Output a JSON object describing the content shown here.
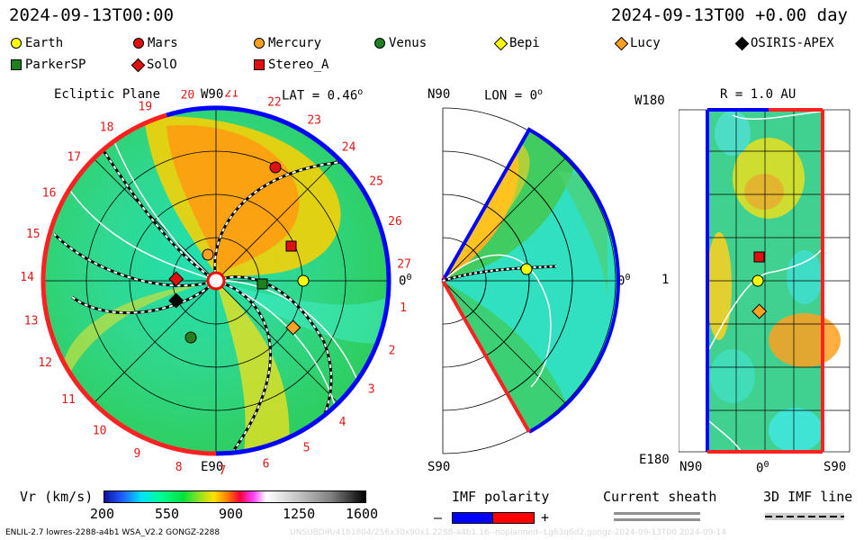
{
  "header": {
    "left_timestamp": "2024-09-13T00:00",
    "right_timestamp": "2024-09-13T00 +0.00 day"
  },
  "legend": [
    {
      "label": "Earth",
      "shape": "circle",
      "color": "#ffff00"
    },
    {
      "label": "Mars",
      "shape": "circle",
      "color": "#e01010"
    },
    {
      "label": "Mercury",
      "shape": "circle",
      "color": "#ffa020"
    },
    {
      "label": "Venus",
      "shape": "circle",
      "color": "#208020"
    },
    {
      "label": "Bepi",
      "shape": "diamond",
      "color": "#ffff00"
    },
    {
      "label": "Lucy",
      "shape": "diamond",
      "color": "#ffa020"
    },
    {
      "label": "OSIRIS-APEX",
      "shape": "diamond",
      "color": "#000000"
    },
    {
      "label": "ParkerSP",
      "shape": "square",
      "color": "#208020"
    },
    {
      "label": "SolO",
      "shape": "diamond",
      "color": "#e01010"
    },
    {
      "label": "Stereo_A",
      "shape": "square",
      "color": "#e01010"
    }
  ],
  "ecliptic": {
    "title": "Ecliptic Plane",
    "top_label": "W90",
    "bottom_label": "E90",
    "right_label": "0",
    "lat_label": "LAT = 0.46",
    "lat_sup": "o",
    "sup": "0",
    "carrington": [
      "19",
      "20",
      "21",
      "22",
      "23",
      "24",
      "25",
      "26",
      "27",
      "1",
      "2",
      "3",
      "4",
      "5",
      "6",
      "7",
      "8",
      "9",
      "10",
      "11",
      "12",
      "13",
      "14",
      "15",
      "16",
      "17",
      "18"
    ]
  },
  "meridional": {
    "top_label": "N90",
    "bottom_label": "S90",
    "lon_label": "LON = 0",
    "sup": "o",
    "right_label": "0",
    "right_sup": "0"
  },
  "radial_map": {
    "r_label": "R = 1.0 AU",
    "top_label": "W180",
    "bottom_label": "E180",
    "mid_label": "1",
    "xaxis": [
      "N90",
      "0",
      "S90"
    ],
    "x_sup": "0"
  },
  "colorbar": {
    "title": "Vr (km/s)",
    "ticks": [
      "200",
      "550",
      "900",
      "1250",
      "1600"
    ]
  },
  "imf": {
    "title": "IMF polarity",
    "minus": "–",
    "plus": "+",
    "sheath": "Current sheath",
    "line": "3D IMF line"
  },
  "footer": {
    "left": "ENLIL-2.7 lowres-2288-a4b1 WSA_V2.2 GONGZ-2288",
    "right": "UNSUBDIR/4161804/256x30x90x1.2288-a4b1.16--noplanned--Lg63q6d2.gongz-2024-09-13T00   2024-09-14"
  },
  "colors": {
    "positive": "#ff0000",
    "negative": "#0000ff",
    "background_model": "#00cc44"
  }
}
